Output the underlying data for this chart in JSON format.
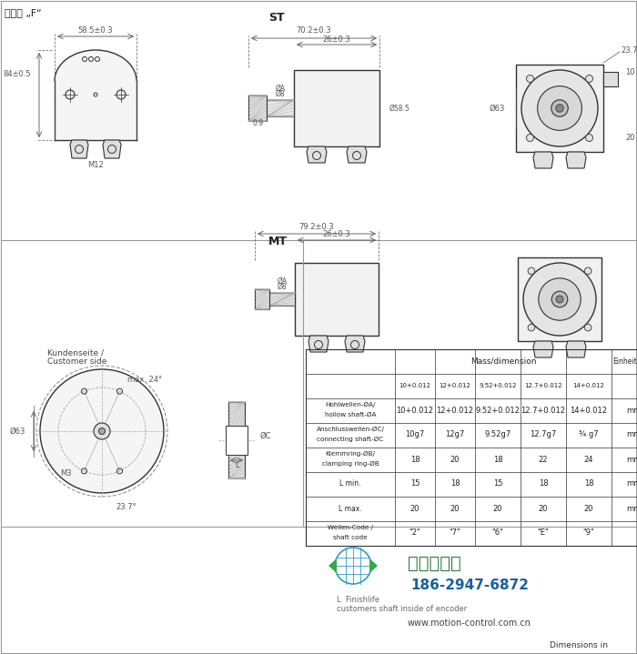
{
  "title": "盲孔轴 „F“",
  "bg_color": "#ffffff",
  "line_color": "#333333",
  "dim_color": "#555555",
  "table_header": "Mass/dimension",
  "table_unit_header": "Einheit/unit",
  "table_rows": [
    {
      "label1": "Hohlwellen-ØA/",
      "label2": "hollow shaft-ØA",
      "values": [
        "10+0.012",
        "12+0.012",
        "9.52+0.012",
        "12.7+0.012",
        "14+0.012"
      ],
      "unit": "mm"
    },
    {
      "label1": "Anschlusswellen-ØC/",
      "label2": "connecting shaft-ØC",
      "values": [
        "10g7",
        "12g7",
        "9.52g7",
        "12.7g7",
        "¾ g7"
      ],
      "unit": "mm"
    },
    {
      "label1": "Klemmring-ØB/",
      "label2": "clamping ring-ØB",
      "values": [
        "18",
        "20",
        "18",
        "22",
        "24"
      ],
      "unit": "mm"
    },
    {
      "label1": "L min.",
      "label2": "",
      "values": [
        "15",
        "18",
        "15",
        "18",
        "18"
      ],
      "unit": "mm"
    },
    {
      "label1": "L max.",
      "label2": "",
      "values": [
        "20",
        "20",
        "20",
        "20",
        "20"
      ],
      "unit": "mm"
    },
    {
      "label1": "Wellen-Code /",
      "label2": "shaft code",
      "values": [
        "\"2\"",
        "\"7\"",
        "\"6\"",
        "\"E\"",
        "\"9\""
      ],
      "unit": ""
    }
  ],
  "col_headers": [
    "10+0.012",
    "12+0.012",
    "9.52+0.012",
    "12.7+0.012",
    "14+0.012"
  ],
  "watermark_text": "西安德伍拓",
  "phone": "186-2947-6872",
  "website": "www.motion-control.com.cn",
  "dim_text_color": "#444444",
  "green_color": "#2d7a3a",
  "blue_color": "#1a5fa0"
}
